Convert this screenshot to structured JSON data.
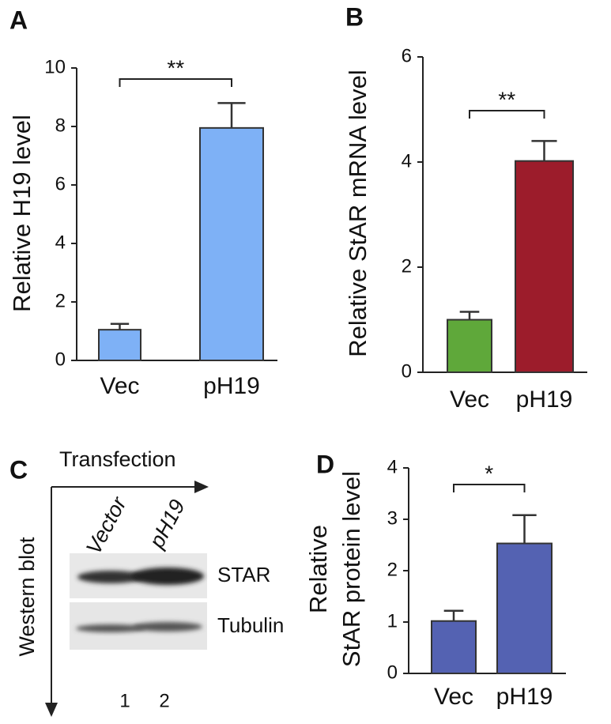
{
  "chart_data": [
    {
      "type": "bar",
      "panel": "A",
      "ylabel": "Relative H19 level",
      "categories": [
        "Vec",
        "pH19"
      ],
      "values": [
        1.05,
        7.95
      ],
      "errors": [
        0.2,
        0.85
      ],
      "colors": [
        "#7eb1f6",
        "#7eb1f6"
      ],
      "ylim": [
        0,
        10
      ],
      "yticks": [
        0,
        2,
        4,
        6,
        8,
        10
      ],
      "significance": "**"
    },
    {
      "type": "bar",
      "panel": "B",
      "ylabel": "Relative StAR mRNA level",
      "categories": [
        "Vec",
        "pH19"
      ],
      "values": [
        1.0,
        4.02
      ],
      "errors": [
        0.15,
        0.38
      ],
      "colors": [
        "#5fa83a",
        "#9c1c2b"
      ],
      "ylim": [
        0,
        6
      ],
      "yticks": [
        0,
        2,
        4,
        6
      ],
      "significance": "**"
    },
    {
      "type": "bar",
      "panel": "D",
      "ylabel": [
        "Relative",
        "StAR protein level"
      ],
      "categories": [
        "Vec",
        "pH19"
      ],
      "values": [
        1.02,
        2.53
      ],
      "errors": [
        0.2,
        0.55
      ],
      "colors": [
        "#5462b2",
        "#5462b2"
      ],
      "ylim": [
        0,
        4
      ],
      "yticks": [
        0,
        1,
        2,
        3,
        4
      ],
      "significance": "*"
    }
  ],
  "blot": {
    "panel": "C",
    "xlabel": "Transfection",
    "ylabel": "Western blot",
    "lanes": [
      "Vector",
      "pH19"
    ],
    "bands": [
      "STAR",
      "Tubulin"
    ],
    "lane_numbers": [
      "1",
      "2"
    ]
  }
}
